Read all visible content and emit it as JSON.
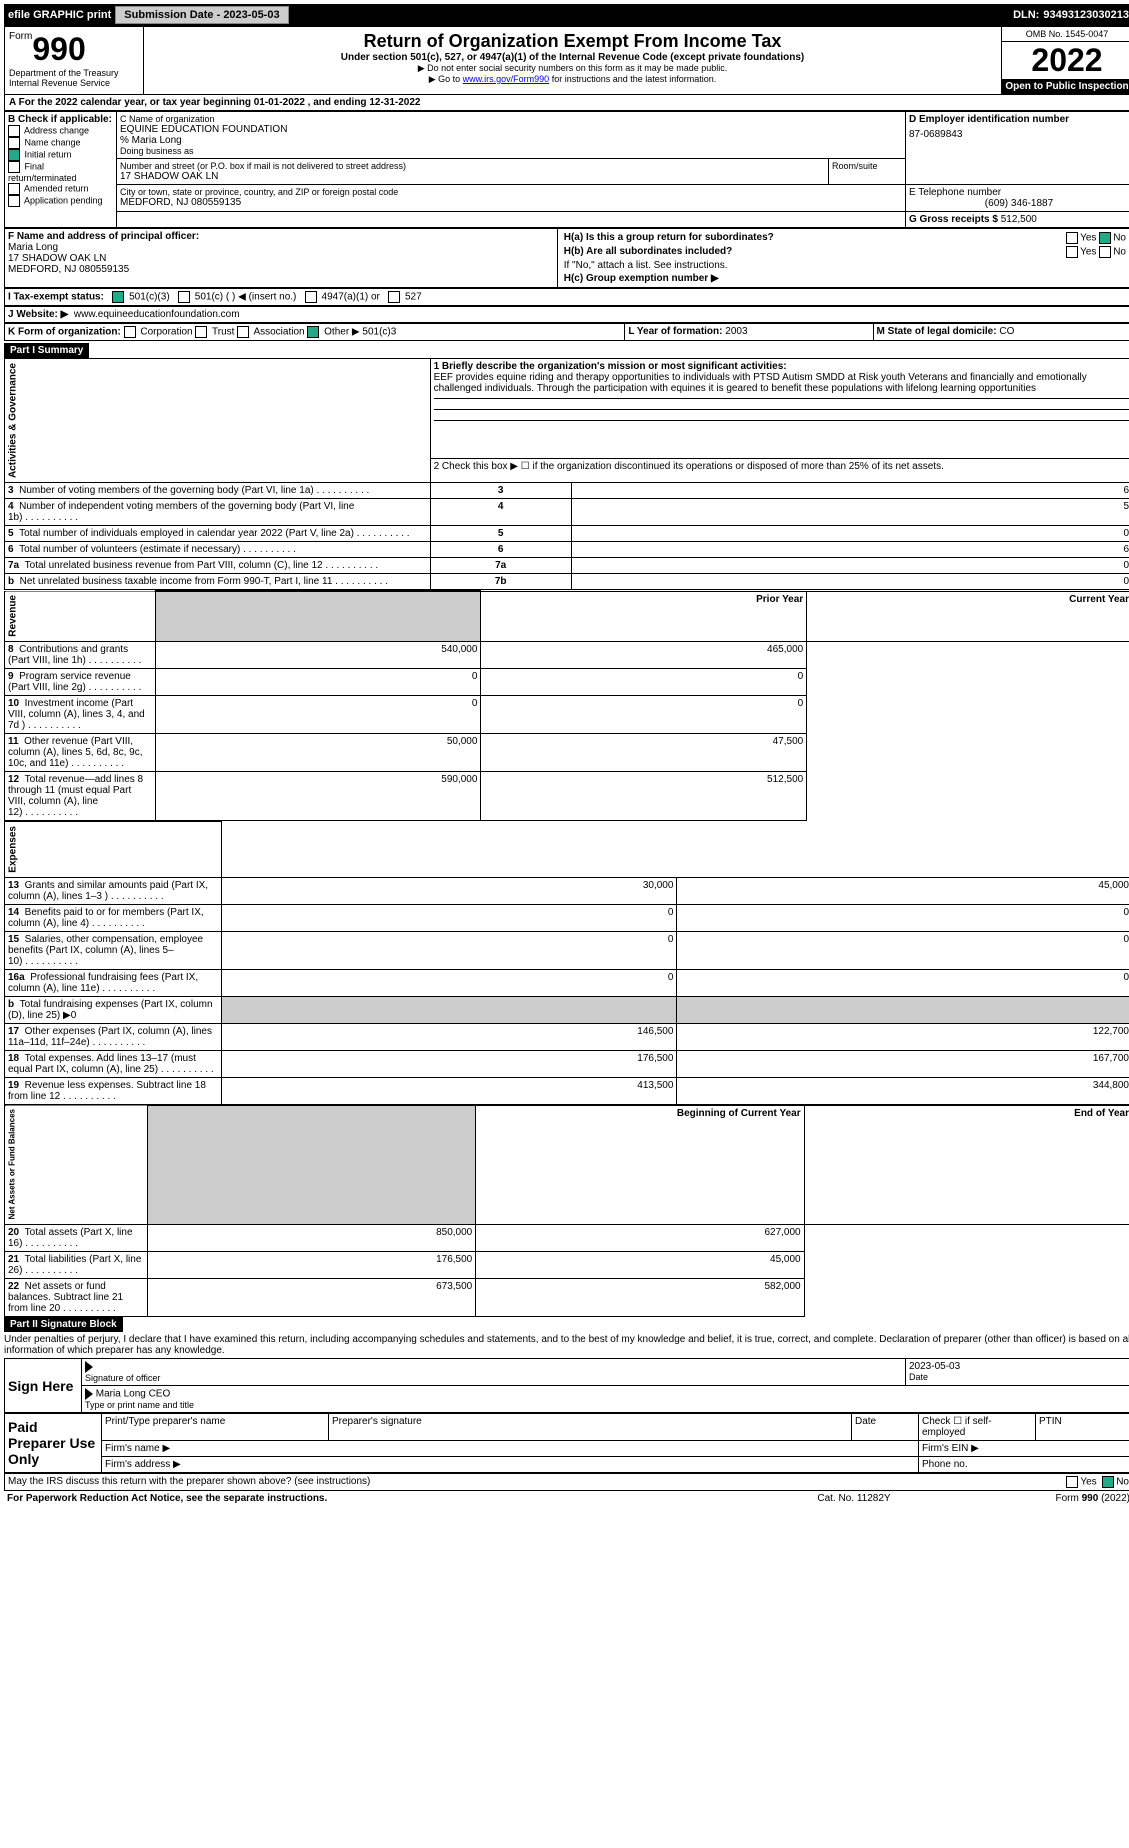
{
  "topbar": {
    "efile": "efile GRAPHIC print",
    "submission": "Submission Date - 2023-05-03",
    "dln_label": "DLN:",
    "dln": "93493123030213"
  },
  "header": {
    "form_prefix": "Form",
    "form_num": "990",
    "title": "Return of Organization Exempt From Income Tax",
    "subtitle": "Under section 501(c), 527, or 4947(a)(1) of the Internal Revenue Code (except private foundations)",
    "warn1": "▶ Do not enter social security numbers on this form as it may be made public.",
    "warn2": "▶ Go to www.irs.gov/Form990 for instructions and the latest information.",
    "dept": "Department of the Treasury",
    "irs": "Internal Revenue Service",
    "omb": "OMB No. 1545-0047",
    "year": "2022",
    "open": "Open to Public Inspection"
  },
  "period": {
    "line": "A For the 2022 calendar year, or tax year beginning 01-01-2022    , and ending 12-31-2022"
  },
  "boxB": {
    "title": "B Check if applicable:",
    "items": [
      "Address change",
      "Name change",
      "Initial return",
      "Final return/terminated",
      "Amended return",
      "Application pending"
    ],
    "checked_index": 2
  },
  "boxC": {
    "label_name": "C Name of organization",
    "org": "EQUINE EDUCATION FOUNDATION",
    "care": "% Maria Long",
    "dba_label": "Doing business as",
    "street_label": "Number and street (or P.O. box if mail is not delivered to street address)",
    "room_label": "Room/suite",
    "street": "17 SHADOW OAK LN",
    "city_label": "City or town, state or province, country, and ZIP or foreign postal code",
    "city": "MEDFORD, NJ  080559135"
  },
  "boxD": {
    "label": "D Employer identification number",
    "val": "87-0689843"
  },
  "boxE": {
    "label": "E Telephone number",
    "val": "(609) 346-1887"
  },
  "boxG": {
    "label": "G Gross receipts $",
    "val": "512,500"
  },
  "boxF": {
    "label": "F Name and address of principal officer:",
    "name": "Maria Long",
    "addr1": "17 SHADOW OAK LN",
    "addr2": "MEDFORD, NJ  080559135"
  },
  "boxH": {
    "a": "H(a) Is this a group return for subordinates?",
    "b": "H(b) Are all subordinates included?",
    "note": "If \"No,\" attach a list. See instructions.",
    "c": "H(c) Group exemption number ▶",
    "yes": "Yes",
    "no": "No"
  },
  "boxI": {
    "label": "I Tax-exempt status:",
    "opts": [
      "501(c)(3)",
      "501(c) (   ) ◀ (insert no.)",
      "4947(a)(1) or",
      "527"
    ]
  },
  "boxJ": {
    "label": "J  Website: ▶",
    "val": "www.equineeducationfoundation.com"
  },
  "boxK": {
    "label": "K Form of organization:",
    "opts": [
      "Corporation",
      "Trust",
      "Association",
      "Other ▶"
    ],
    "other_val": "501(c)3"
  },
  "boxL": {
    "label": "L Year of formation:",
    "val": "2003"
  },
  "boxM": {
    "label": "M State of legal domicile:",
    "val": "CO"
  },
  "part1": {
    "title": "Part I    Summary",
    "q1": "1 Briefly describe the organization's mission or most significant activities:",
    "mission": "EEF provides equine riding and therapy opportunities to individuals with PTSD Autism SMDD at Risk youth Veterans and financially and emotionally challenged individuals. Through the participation with equines it is geared to benefit these populations with lifelong learning opportunities",
    "q2": "2  Check this box ▶ ☐ if the organization discontinued its operations or disposed of more than 25% of its net assets.",
    "rows_gov": [
      {
        "n": "3",
        "t": "Number of voting members of the governing body (Part VI, line 1a)",
        "box": "3",
        "v": "6"
      },
      {
        "n": "4",
        "t": "Number of independent voting members of the governing body (Part VI, line 1b)",
        "box": "4",
        "v": "5"
      },
      {
        "n": "5",
        "t": "Total number of individuals employed in calendar year 2022 (Part V, line 2a)",
        "box": "5",
        "v": "0"
      },
      {
        "n": "6",
        "t": "Total number of volunteers (estimate if necessary)",
        "box": "6",
        "v": "6"
      },
      {
        "n": "7a",
        "t": "Total unrelated business revenue from Part VIII, column (C), line 12",
        "box": "7a",
        "v": "0"
      },
      {
        "n": "b",
        "t": "Net unrelated business taxable income from Form 990-T, Part I, line 11",
        "box": "7b",
        "v": "0"
      }
    ],
    "col_prior": "Prior Year",
    "col_current": "Current Year",
    "rows_rev": [
      {
        "n": "8",
        "t": "Contributions and grants (Part VIII, line 1h)",
        "p": "540,000",
        "c": "465,000"
      },
      {
        "n": "9",
        "t": "Program service revenue (Part VIII, line 2g)",
        "p": "0",
        "c": "0"
      },
      {
        "n": "10",
        "t": "Investment income (Part VIII, column (A), lines 3, 4, and 7d )",
        "p": "0",
        "c": "0"
      },
      {
        "n": "11",
        "t": "Other revenue (Part VIII, column (A), lines 5, 6d, 8c, 9c, 10c, and 11e)",
        "p": "50,000",
        "c": "47,500"
      },
      {
        "n": "12",
        "t": "Total revenue—add lines 8 through 11 (must equal Part VIII, column (A), line 12)",
        "p": "590,000",
        "c": "512,500"
      }
    ],
    "rows_exp": [
      {
        "n": "13",
        "t": "Grants and similar amounts paid (Part IX, column (A), lines 1–3 )",
        "p": "30,000",
        "c": "45,000"
      },
      {
        "n": "14",
        "t": "Benefits paid to or for members (Part IX, column (A), line 4)",
        "p": "0",
        "c": "0"
      },
      {
        "n": "15",
        "t": "Salaries, other compensation, employee benefits (Part IX, column (A), lines 5–10)",
        "p": "0",
        "c": "0"
      },
      {
        "n": "16a",
        "t": "Professional fundraising fees (Part IX, column (A), line 11e)",
        "p": "0",
        "c": "0"
      },
      {
        "n": "b",
        "t": "Total fundraising expenses (Part IX, column (D), line 25) ▶0",
        "p": "",
        "c": "",
        "shade": true
      },
      {
        "n": "17",
        "t": "Other expenses (Part IX, column (A), lines 11a–11d, 11f–24e)",
        "p": "146,500",
        "c": "122,700"
      },
      {
        "n": "18",
        "t": "Total expenses. Add lines 13–17 (must equal Part IX, column (A), line 25)",
        "p": "176,500",
        "c": "167,700"
      },
      {
        "n": "19",
        "t": "Revenue less expenses. Subtract line 18 from line 12",
        "p": "413,500",
        "c": "344,800"
      }
    ],
    "col_begin": "Beginning of Current Year",
    "col_end": "End of Year",
    "rows_net": [
      {
        "n": "20",
        "t": "Total assets (Part X, line 16)",
        "p": "850,000",
        "c": "627,000"
      },
      {
        "n": "21",
        "t": "Total liabilities (Part X, line 26)",
        "p": "176,500",
        "c": "45,000"
      },
      {
        "n": "22",
        "t": "Net assets or fund balances. Subtract line 21 from line 20",
        "p": "673,500",
        "c": "582,000"
      }
    ],
    "side_gov": "Activities & Governance",
    "side_rev": "Revenue",
    "side_exp": "Expenses",
    "side_net": "Net Assets or Fund Balances"
  },
  "part2": {
    "title": "Part II    Signature Block",
    "decl": "Under penalties of perjury, I declare that I have examined this return, including accompanying schedules and statements, and to the best of my knowledge and belief, it is true, correct, and complete. Declaration of preparer (other than officer) is based on all information of which preparer has any knowledge.",
    "sign_here": "Sign Here",
    "sig_officer": "Signature of officer",
    "date": "Date",
    "sig_date": "2023-05-03",
    "name_title": "Maria Long CEO",
    "type_label": "Type or print name and title",
    "paid": "Paid Preparer Use Only",
    "prep_name": "Print/Type preparer's name",
    "prep_sig": "Preparer's signature",
    "prep_date": "Date",
    "check_self": "Check ☐ if self-employed",
    "ptin": "PTIN",
    "firm_name": "Firm's name  ▶",
    "firm_ein": "Firm's EIN ▶",
    "firm_addr": "Firm's address ▶",
    "phone": "Phone no.",
    "discuss": "May the IRS discuss this return with the preparer shown above? (see instructions)",
    "yes": "Yes",
    "no": "No"
  },
  "footer": {
    "left": "For Paperwork Reduction Act Notice, see the separate instructions.",
    "cat": "Cat. No. 11282Y",
    "right": "Form 990 (2022)"
  }
}
